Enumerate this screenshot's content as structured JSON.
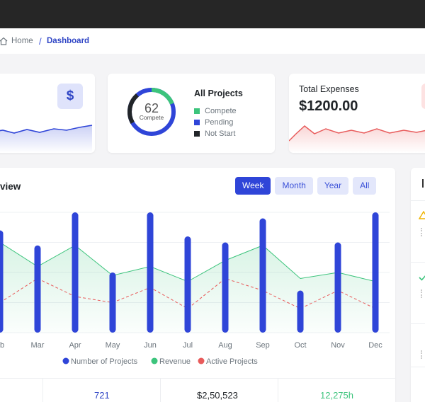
{
  "breadcrumb": {
    "home": "Home",
    "separator": "/",
    "current": "Dashboard"
  },
  "revenue_card": {
    "icon": "dollar-icon",
    "icon_glyph": "$"
  },
  "projects_card": {
    "title": "All Projects",
    "donut_value": "62",
    "donut_label": "Compete",
    "legend": [
      {
        "label": "Compete",
        "color": "#3cc47c"
      },
      {
        "label": "Pending",
        "color": "#2f45d8"
      },
      {
        "label": "Not Start",
        "color": "#212529"
      }
    ]
  },
  "expenses_card": {
    "title": "Total Expenses",
    "value": "$1200.00"
  },
  "overview": {
    "title": "view",
    "filters": [
      "Week",
      "Month",
      "Year",
      "All"
    ],
    "active_filter": "Week"
  },
  "stats": [
    "721",
    "$2,50,523",
    "12,275h"
  ],
  "colors": {
    "primary": "#2f45d8",
    "revenue": "#3cc47c",
    "active": "#e85b5b",
    "expense": "#e85b5b"
  },
  "chart_data": {
    "type": "bar",
    "categories": [
      "Feb",
      "Mar",
      "Apr",
      "May",
      "Jun",
      "Jul",
      "Aug",
      "Sep",
      "Oct",
      "Nov",
      "Dec"
    ],
    "xtick_labels": [
      "eb",
      "Mar",
      "Apr",
      "May",
      "Jun",
      "Jul",
      "Aug",
      "Sep",
      "Oct",
      "Nov",
      "Dec"
    ],
    "series": [
      {
        "name": "Number of Projects",
        "type": "bar",
        "values": [
          34,
          29,
          40,
          20,
          40,
          32,
          30,
          38,
          14,
          30,
          40
        ]
      },
      {
        "name": "Revenue",
        "type": "area",
        "values": [
          30,
          22,
          29,
          19,
          22,
          17,
          24,
          29,
          18,
          20,
          17
        ]
      },
      {
        "name": "Active Projects",
        "type": "line",
        "values": [
          10,
          18,
          12,
          10,
          15,
          8,
          18,
          14,
          8,
          14,
          8
        ]
      }
    ],
    "ylim": [
      0,
      40
    ],
    "grid": true,
    "legend_position": "bottom"
  }
}
